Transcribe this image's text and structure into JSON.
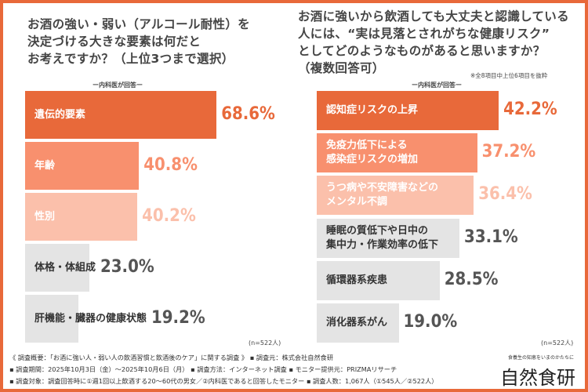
{
  "colors": {
    "accent": "#e8693a",
    "mid": "#f8906e",
    "light": "#fbc0ab",
    "gray": "#e4e4e4",
    "gray_text": "#555555"
  },
  "chart_data": [
    {
      "type": "bar",
      "title": "お酒の強い・弱い（アルコール耐性）を\n決定づける大きな要素は何だと\nお考えですか？（上位3つまで選択）",
      "subtitle": "ー内科医が回答ー",
      "categories": [
        "遺伝的要素",
        "年齢",
        "性別",
        "体格・体組成",
        "肝機能・臓器の健康状態"
      ],
      "values": [
        68.6,
        40.8,
        40.2,
        23.0,
        19.2
      ],
      "labels": [
        "68.6%",
        "40.8%",
        "40.2%",
        "23.0%",
        "19.2%"
      ],
      "n": "(n=522人)",
      "unit": "%"
    },
    {
      "type": "bar",
      "title": "お酒に強いから飲酒しても大丈夫と認識している\n人には、“実は見落とされがちな健康リスク”\nとしてどのようなものがあると思いますか？\n（複数回答可）",
      "subtitle": "ー内科医が回答ー",
      "note": "※全8項目中上位6項目を抜粋",
      "categories": [
        "認知症リスクの上昇",
        "免疫力低下による\n感染症リスクの増加",
        "うつ病や不安障害などの\nメンタル不調",
        "睡眠の質低下や日中の\n集中力・作業効率の低下",
        "循環器系疾患",
        "消化器系がん"
      ],
      "values": [
        42.2,
        37.2,
        36.4,
        33.1,
        28.5,
        19.0
      ],
      "labels": [
        "42.2%",
        "37.2%",
        "36.4%",
        "33.1%",
        "28.5%",
        "19.0%"
      ],
      "n": "(n=522人)",
      "unit": "%"
    }
  ],
  "footer": {
    "line1": "《 調査概要：「お酒に強い人・弱い人の飲酒習慣と飲酒後のケア」に関する調査 》 ▪ 調査元：株式会社自然食研",
    "line2": "▪ 調査期間：2025年10月3日（金）〜2025年10月6日（月） ▪ 調査方法：インターネット調査 ▪ モニター提供元：PRIZMAリサーチ",
    "line3": "▪ 調査対象：調査回答時に①週1回以上飲酒する20〜60代の男女／②内科医であると回答したモニター ▪ 調査人数：1,067人（①545人／②522人）"
  },
  "logo": {
    "tagline": "食養生の知恵をいまのかたちに",
    "name": "自然食研"
  }
}
